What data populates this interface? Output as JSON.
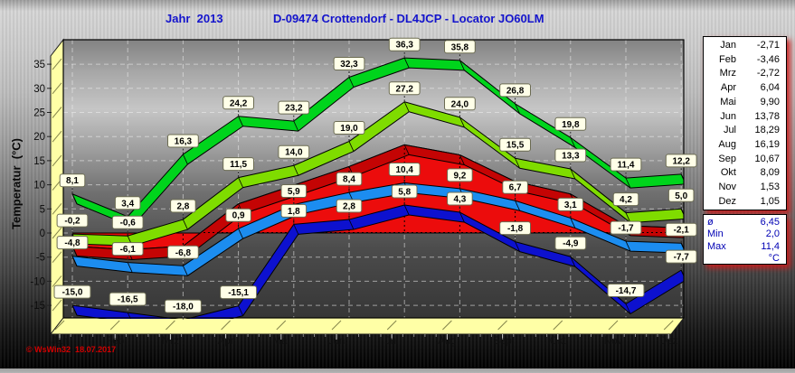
{
  "header": {
    "year_label": "Jahr  2013",
    "station_title": "D-09474 Crottendorf - DL4JCP - Locator JO60LM",
    "color": "#1414cc"
  },
  "watermark": {
    "text": "© WsWin32  18.07.2017",
    "color": "#d40000"
  },
  "chart_data": {
    "type": "line",
    "title": "Jahr 2013 - D-09474 Crottendorf - DL4JCP - Locator JO60LM",
    "ylabel": "Temperatur  (°C)",
    "xlabel": "",
    "categories": [
      "Jan",
      "Feb",
      "Mrz",
      "Apr",
      "Mai",
      "Jun",
      "Jul",
      "Aug",
      "Sep",
      "Okt",
      "Nov",
      "Dez"
    ],
    "ylim": [
      -18,
      40
    ],
    "yticks": [
      -15,
      -10,
      -5,
      0,
      5,
      10,
      15,
      20,
      25,
      30,
      35
    ],
    "grid": true,
    "legend_position": "right",
    "decimal_separator": ",",
    "series": [
      {
        "id": "absolute-max",
        "type": "line3d",
        "marks": true,
        "color": "#00d41c",
        "values": [
          8.1,
          3.4,
          16.3,
          24.2,
          23.2,
          32.3,
          36.3,
          35.8,
          26.8,
          19.8,
          11.4,
          12.2
        ]
      },
      {
        "id": "mean-max",
        "type": "line3d",
        "marks": true,
        "color": "#7fdc00",
        "values": [
          -0.2,
          -0.6,
          2.8,
          11.5,
          14.0,
          19.0,
          27.2,
          24.0,
          15.5,
          13.3,
          4.2,
          5.0
        ]
      },
      {
        "id": "monthly-mean",
        "type": "area3d",
        "marks": false,
        "color": "#ec0c0c",
        "ribbon_color": "#c40404",
        "values": [
          -2.71,
          -3.46,
          -2.72,
          6.04,
          9.9,
          13.78,
          18.29,
          16.19,
          10.67,
          8.09,
          1.53,
          1.05
        ]
      },
      {
        "id": "mean-min",
        "type": "line3d",
        "marks": true,
        "color": "#1c8df0",
        "values": [
          -4.8,
          -6.1,
          -6.8,
          0.9,
          5.9,
          8.4,
          10.4,
          9.2,
          6.7,
          3.1,
          -1.7,
          -2.1
        ]
      },
      {
        "id": "absolute-min",
        "type": "line3d",
        "marks": true,
        "color": "#0d11cf",
        "values": [
          -15.0,
          -16.5,
          -18.0,
          -15.1,
          1.8,
          2.8,
          5.8,
          4.3,
          -1.8,
          -4.9,
          -14.7,
          -7.7
        ]
      }
    ],
    "mark_style": {
      "bg": "#ffffe8",
      "border": "#6b6b52",
      "text": "#000000"
    },
    "wall_color": "#ffffa6"
  },
  "side_panel": {
    "months": [
      {
        "label": "Jan",
        "value": "-2,71"
      },
      {
        "label": "Feb",
        "value": "-3,46"
      },
      {
        "label": "Mrz",
        "value": "-2,72"
      },
      {
        "label": "Apr",
        "value": "6,04"
      },
      {
        "label": "Mai",
        "value": "9,90"
      },
      {
        "label": "Jun",
        "value": "13,78"
      },
      {
        "label": "Jul",
        "value": "18,29"
      },
      {
        "label": "Aug",
        "value": "16,19"
      },
      {
        "label": "Sep",
        "value": "10,67"
      },
      {
        "label": "Okt",
        "value": "8,09"
      },
      {
        "label": "Nov",
        "value": "1,53"
      },
      {
        "label": "Dez",
        "value": "1,05"
      }
    ],
    "stats": [
      {
        "label": "ø",
        "value": "6,45"
      },
      {
        "label": "Min",
        "value": "2,0"
      },
      {
        "label": "Max",
        "value": "11,4"
      },
      {
        "label": "",
        "value": "°C"
      }
    ],
    "stats_color": "#0000b4"
  }
}
